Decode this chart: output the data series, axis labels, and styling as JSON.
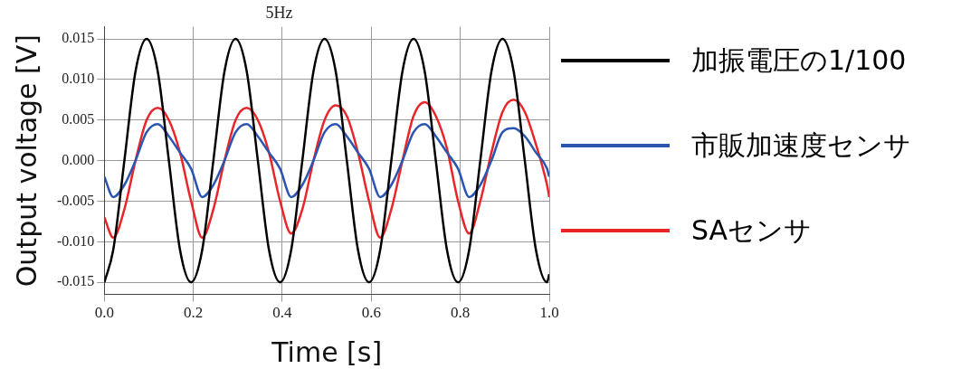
{
  "chart_data": {
    "type": "line",
    "title": "5Hz",
    "xlabel": "Time [s]",
    "ylabel": "Output voltage [V]",
    "x": [
      0,
      0.02,
      0.045,
      0.07,
      0.095,
      0.12,
      0.145,
      0.17,
      0.195,
      0.22,
      0.245,
      0.27,
      0.295,
      0.32,
      0.345,
      0.37,
      0.395,
      0.42,
      0.445,
      0.47,
      0.495,
      0.52,
      0.545,
      0.57,
      0.595,
      0.62,
      0.645,
      0.67,
      0.695,
      0.72,
      0.745,
      0.77,
      0.795,
      0.82,
      0.845,
      0.87,
      0.895,
      0.92,
      0.945,
      0.97,
      0.995,
      1.0
    ],
    "series": [
      {
        "name": "加振電圧の1/100",
        "color": "#000000",
        "values": [
          -0.015,
          -0.011,
          0,
          0.011,
          0.015,
          0.011,
          0,
          -0.011,
          -0.015,
          -0.011,
          0,
          0.011,
          0.015,
          0.011,
          0,
          -0.011,
          -0.015,
          -0.011,
          0,
          0.011,
          0.015,
          0.011,
          0,
          -0.011,
          -0.015,
          -0.011,
          0,
          0.011,
          0.015,
          0.011,
          0,
          -0.011,
          -0.015,
          -0.011,
          0,
          0.011,
          0.015,
          0.011,
          0,
          -0.011,
          -0.015,
          -0.014
        ]
      },
      {
        "name": "市販加速度センサ",
        "color": "#2a55b0",
        "values": [
          -0.002,
          -0.0045,
          -0.003,
          0,
          0.0035,
          0.0045,
          0.003,
          0.001,
          -0.001,
          -0.0045,
          -0.003,
          0,
          0.0035,
          0.0045,
          0.003,
          0.001,
          -0.001,
          -0.0045,
          -0.003,
          0,
          0.0035,
          0.0045,
          0.003,
          0.001,
          -0.001,
          -0.0045,
          -0.003,
          0,
          0.0035,
          0.0045,
          0.003,
          0.001,
          -0.001,
          -0.0045,
          -0.003,
          0,
          0.0035,
          0.004,
          0.003,
          0.001,
          -0.001,
          -0.002
        ]
      },
      {
        "name": "SAセンサ",
        "color": "#e8262a",
        "values": [
          -0.007,
          -0.0095,
          -0.006,
          0,
          0.005,
          0.0065,
          0.005,
          0.001,
          -0.005,
          -0.0095,
          -0.006,
          0,
          0.005,
          0.0065,
          0.005,
          0.001,
          -0.005,
          -0.009,
          -0.006,
          0,
          0.005,
          0.0068,
          0.0055,
          0.001,
          -0.005,
          -0.0095,
          -0.006,
          0,
          0.0055,
          0.0072,
          0.0055,
          0.0015,
          -0.005,
          -0.009,
          -0.005,
          0.001,
          0.006,
          0.0075,
          0.006,
          0.002,
          -0.003,
          -0.0045
        ]
      }
    ],
    "xlim": [
      0,
      1
    ],
    "xticks": [
      {
        "value": 0,
        "label": "0.0"
      },
      {
        "value": 0.2,
        "label": "0.2"
      },
      {
        "value": 0.4,
        "label": "0.4"
      },
      {
        "value": 0.6,
        "label": "0.6"
      },
      {
        "value": 0.8,
        "label": "0.8"
      },
      {
        "value": 1,
        "label": "1.0"
      }
    ],
    "ylim": [
      -0.0165,
      0.0165
    ],
    "yticks": [
      {
        "value": -0.015,
        "label": "-0.015"
      },
      {
        "value": -0.01,
        "label": "-0.010"
      },
      {
        "value": -0.005,
        "label": "-0.005"
      },
      {
        "value": 0,
        "label": "0.000"
      },
      {
        "value": 0.005,
        "label": "0.005"
      },
      {
        "value": 0.01,
        "label": "0.010"
      },
      {
        "value": 0.015,
        "label": "0.015"
      }
    ],
    "grid": true,
    "legend": "right",
    "marker": "none",
    "line_style": "solid"
  }
}
